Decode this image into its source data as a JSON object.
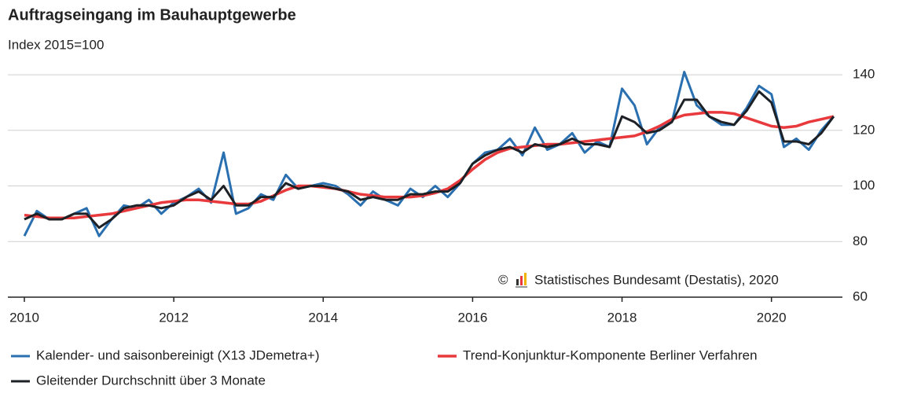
{
  "chart_data": {
    "type": "line",
    "title": "Auftragseingang im Bauhauptgewerbe",
    "subtitle": "Index 2015=100",
    "copyright": "©",
    "source": "Statistisches Bundesamt (Destatis), 2020",
    "xlim": [
      2010,
      2020.95
    ],
    "xticks": [
      2010,
      2012,
      2014,
      2016,
      2018,
      2020
    ],
    "ylim": [
      60,
      142
    ],
    "yticks": [
      60,
      80,
      100,
      120,
      140
    ],
    "grid": true,
    "legend": "bottom",
    "x": [
      2010,
      2010.167,
      2010.333,
      2010.5,
      2010.667,
      2010.833,
      2011,
      2011.167,
      2011.333,
      2011.5,
      2011.667,
      2011.833,
      2012,
      2012.167,
      2012.333,
      2012.5,
      2012.667,
      2012.833,
      2013,
      2013.167,
      2013.333,
      2013.5,
      2013.667,
      2013.833,
      2014,
      2014.167,
      2014.333,
      2014.5,
      2014.667,
      2014.833,
      2015,
      2015.167,
      2015.333,
      2015.5,
      2015.667,
      2015.833,
      2016,
      2016.167,
      2016.333,
      2016.5,
      2016.667,
      2016.833,
      2017,
      2017.167,
      2017.333,
      2017.5,
      2017.667,
      2017.833,
      2018,
      2018.167,
      2018.333,
      2018.5,
      2018.667,
      2018.833,
      2019,
      2019.167,
      2019.333,
      2019.5,
      2019.667,
      2019.833,
      2020,
      2020.167,
      2020.333,
      2020.5,
      2020.667,
      2020.833
    ],
    "series": [
      {
        "name": "Kalender- und saisonbereinigt (X13 JDemetra+)",
        "color": "#2a6fb0",
        "width": 3,
        "values": [
          82,
          91,
          88,
          88,
          90,
          92,
          82,
          88,
          93,
          92,
          95,
          90,
          94,
          96,
          99,
          94,
          112,
          90,
          92,
          97,
          95,
          104,
          99,
          100,
          101,
          100,
          97,
          93,
          98,
          95,
          93,
          99,
          96,
          100,
          96,
          101,
          108,
          112,
          113,
          117,
          111,
          121,
          113,
          115,
          119,
          112,
          116,
          114,
          135,
          129,
          115,
          121,
          123,
          141,
          129,
          125,
          122,
          122,
          128,
          136,
          133,
          114,
          117,
          113,
          120,
          125
        ]
      },
      {
        "name": "Trend-Konjunktur-Komponente Berliner Verfahren",
        "color": "#e8393d",
        "width": 3.5,
        "values": [
          89.5,
          89,
          88.5,
          88.5,
          88.5,
          89,
          89.5,
          90,
          91,
          92,
          93,
          94,
          94.5,
          95,
          95,
          94.5,
          94,
          93.5,
          93.5,
          94.5,
          96.5,
          98.5,
          100,
          100,
          99.5,
          99,
          98,
          97,
          96.5,
          96,
          96,
          96,
          96.5,
          97.5,
          99,
          102,
          106,
          109.5,
          112,
          113.5,
          114,
          114.5,
          115,
          115,
          115.5,
          116,
          116.5,
          117,
          117.5,
          118,
          119.5,
          121.5,
          124,
          125.5,
          126,
          126.5,
          126.5,
          126,
          124.5,
          123,
          121.5,
          121,
          121.5,
          123,
          124,
          125
        ]
      },
      {
        "name": "Gleitender Durchschnitt über 3 Monate",
        "color": "#1d2126",
        "width": 3,
        "values": [
          88,
          90,
          88,
          88,
          90,
          90,
          85,
          88,
          92,
          93,
          93,
          92,
          93,
          96,
          98,
          95,
          100,
          93,
          93,
          96,
          96,
          101,
          99,
          100,
          100,
          99,
          98,
          95,
          96,
          95,
          95,
          97,
          97,
          98,
          98,
          101,
          108,
          111,
          113,
          114,
          112,
          115,
          114,
          115,
          117,
          115,
          115,
          114,
          125,
          123,
          119,
          120,
          123,
          131,
          131,
          125,
          123,
          122,
          127,
          134,
          130,
          116,
          116,
          115,
          119,
          125
        ]
      }
    ]
  }
}
